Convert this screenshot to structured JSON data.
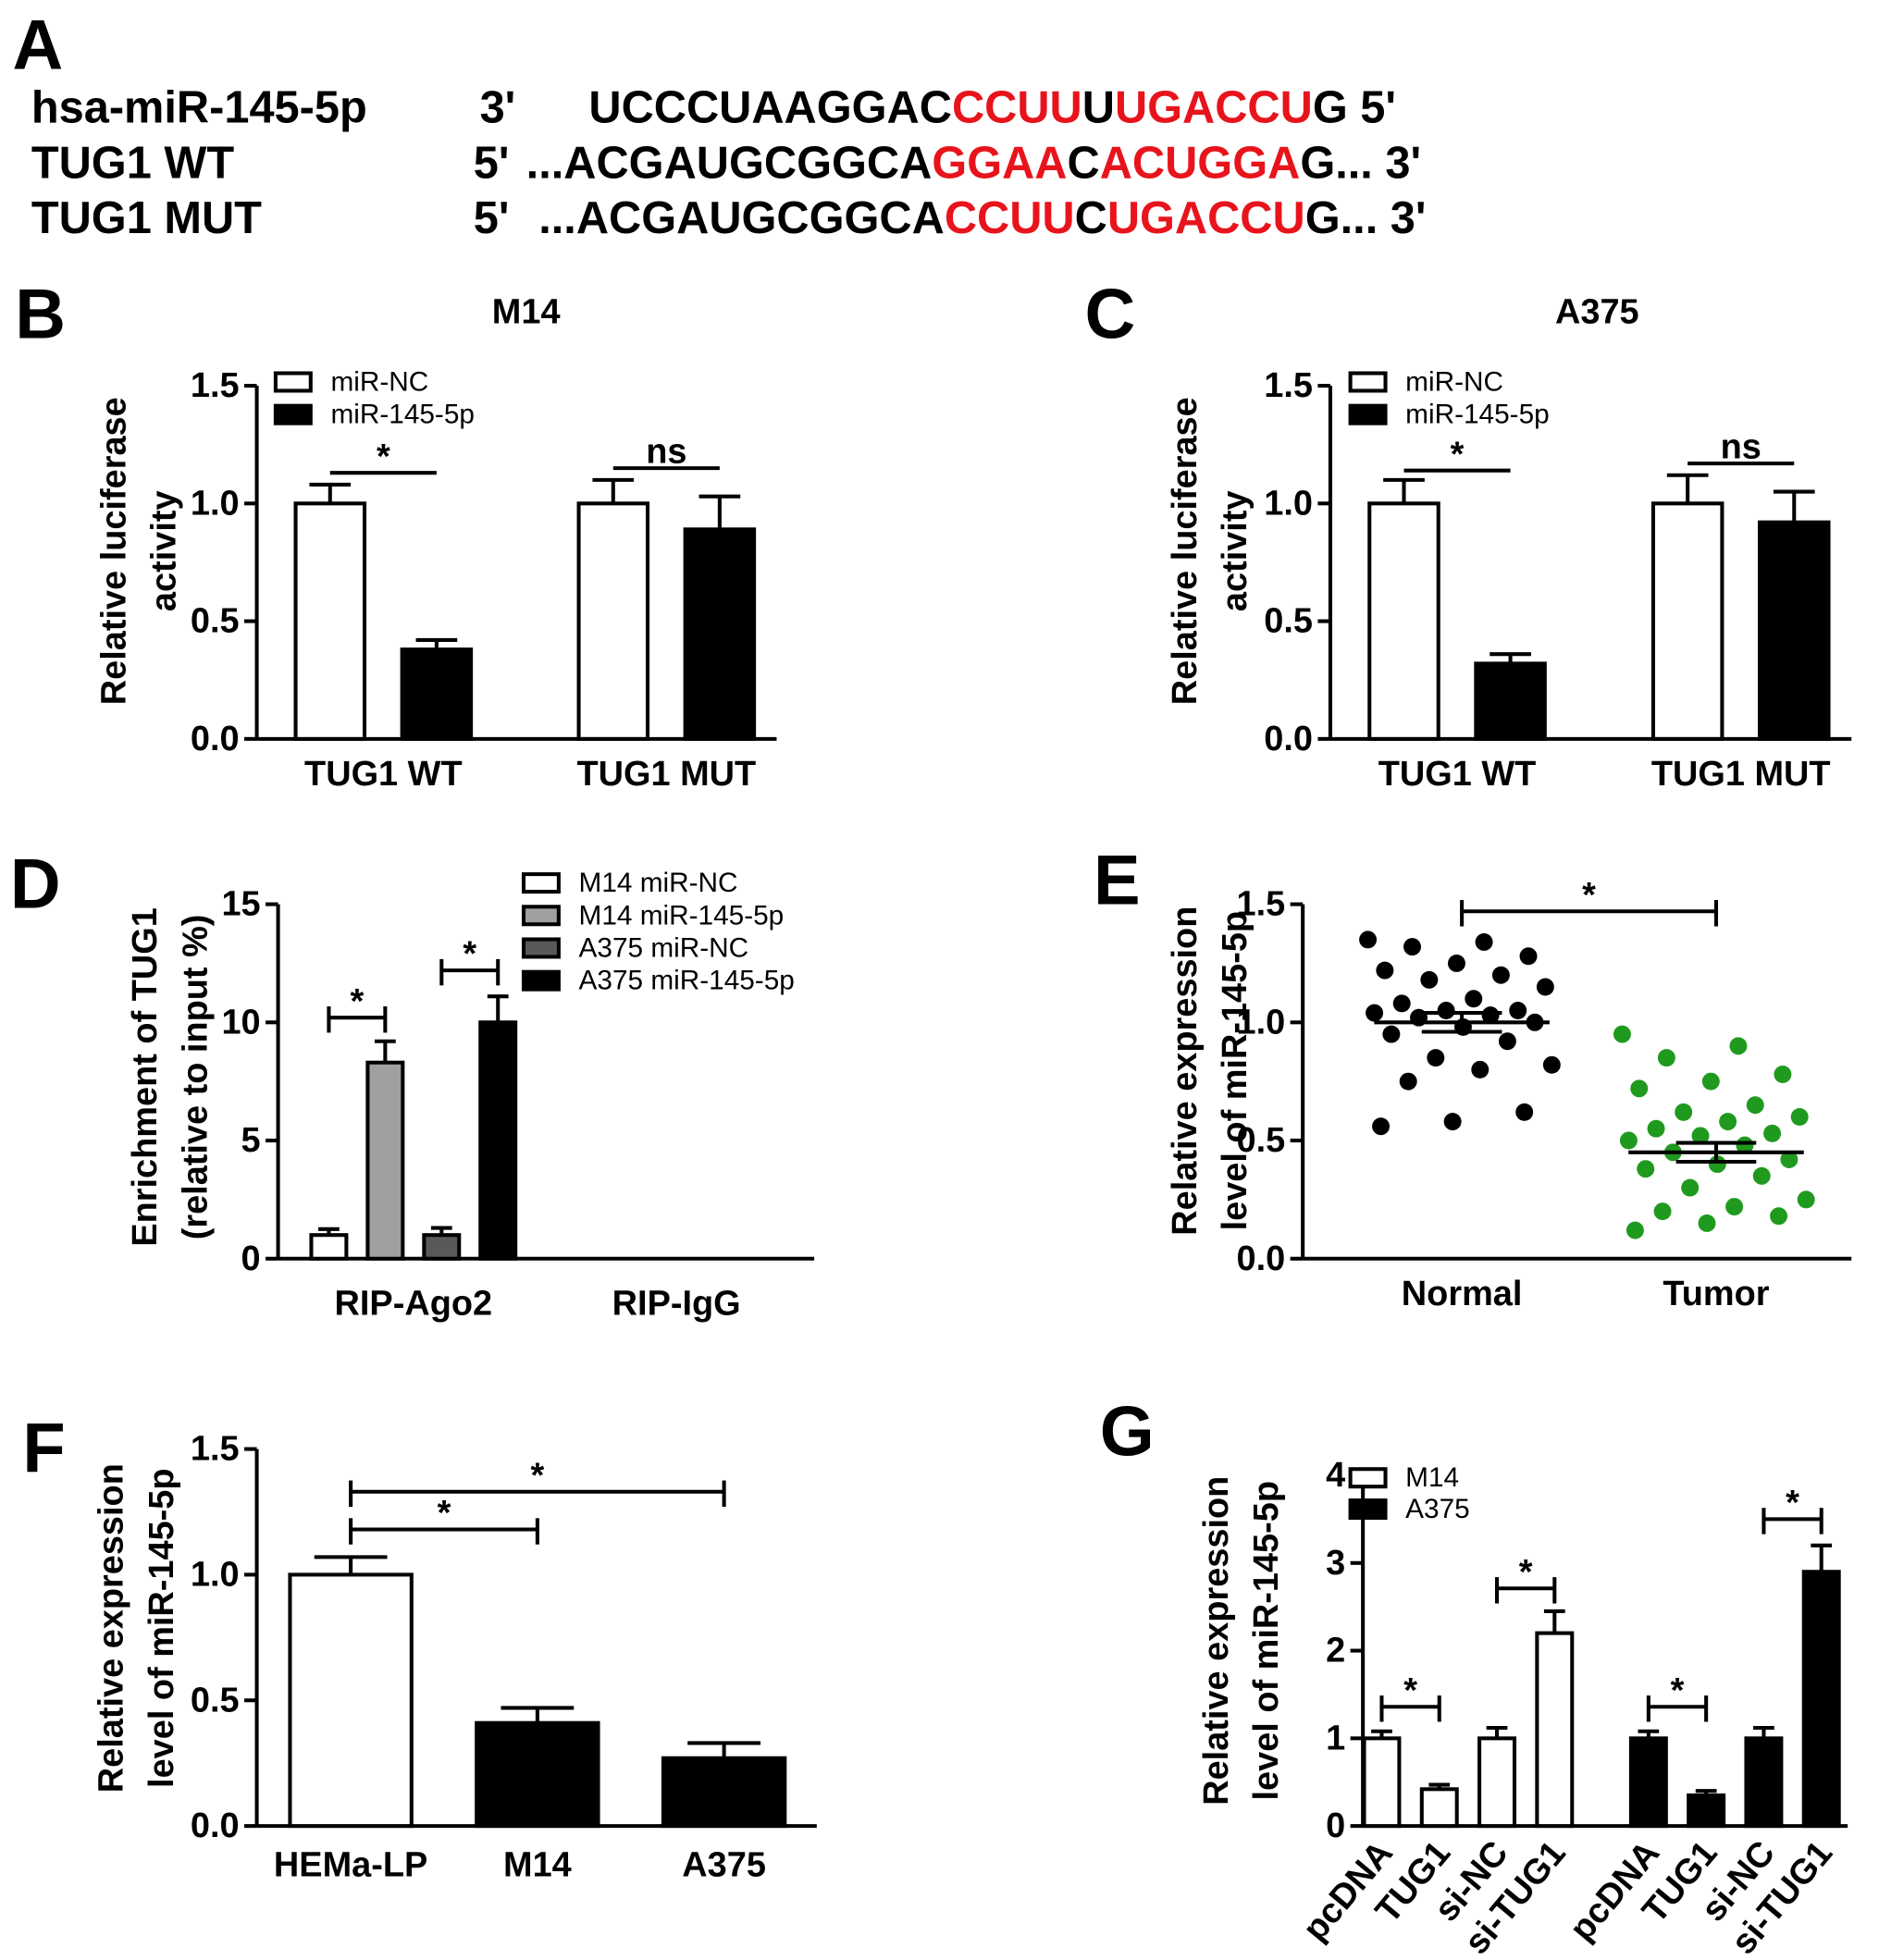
{
  "sequence_panel": {
    "panel": "A",
    "rows": [
      {
        "name": "hsa-miR-145-5p",
        "end": "3'",
        "segments": [
          {
            "text": "UCCCUAAGGAC",
            "color": "#000000"
          },
          {
            "text": "CCUU",
            "color": "#e8141c"
          },
          {
            "text": "U",
            "color": "#000000"
          },
          {
            "text": "UGACCU",
            "color": "#e8141c"
          },
          {
            "text": "G 5'",
            "color": "#000000"
          }
        ]
      },
      {
        "name": "TUG1 WT",
        "end": "5'",
        "segments": [
          {
            "text": "...ACGAUGCGGCA",
            "color": "#000000"
          },
          {
            "text": "GGAA",
            "color": "#e8141c"
          },
          {
            "text": "C",
            "color": "#000000"
          },
          {
            "text": "ACUGGA",
            "color": "#e8141c"
          },
          {
            "text": "G... 3'",
            "color": "#000000"
          }
        ]
      },
      {
        "name": "TUG1 MUT",
        "end": "5'",
        "segments": [
          {
            "text": "...ACGAUGCGGCA",
            "color": "#000000"
          },
          {
            "text": "CCUU",
            "color": "#e8141c"
          },
          {
            "text": "C",
            "color": "#000000"
          },
          {
            "text": "UGACCU",
            "color": "#e8141c"
          },
          {
            "text": "G... 3'",
            "color": "#000000"
          }
        ]
      }
    ]
  },
  "chart_data": [
    {
      "panel": "B",
      "type": "bar",
      "title": "M14",
      "ylabel": [
        "Relative  luciferase",
        "activity"
      ],
      "categories": [
        "TUG1 WT",
        "TUG1 MUT"
      ],
      "series": [
        {
          "name": "miR-NC",
          "color": "#ffffff",
          "values": [
            1.0,
            1.0
          ],
          "errors": [
            0.08,
            0.1
          ]
        },
        {
          "name": "miR-145-5p",
          "color": "#000000",
          "values": [
            0.38,
            0.89
          ],
          "errors": [
            0.04,
            0.14
          ]
        }
      ],
      "ylim": [
        0,
        1.5
      ],
      "yticks": [
        {
          "value": 0,
          "label": "0.0"
        },
        {
          "value": 0.5,
          "label": "0.5"
        },
        {
          "value": 1,
          "label": "1.0"
        },
        {
          "value": 1.5,
          "label": "1.5"
        }
      ],
      "legend": "upper left",
      "annotations": [
        {
          "label": "*",
          "from": [
            0,
            0
          ],
          "to": [
            0,
            1
          ],
          "y": 1.13
        },
        {
          "label": "ns",
          "from": [
            1,
            0
          ],
          "to": [
            1,
            1
          ],
          "y": 1.15
        }
      ]
    },
    {
      "panel": "C",
      "type": "bar",
      "title": "A375",
      "ylabel": [
        "Relative  luciferase",
        "activity"
      ],
      "categories": [
        "TUG1 WT",
        "TUG1 MUT"
      ],
      "series": [
        {
          "name": "miR-NC",
          "color": "#ffffff",
          "values": [
            1.0,
            1.0
          ],
          "errors": [
            0.1,
            0.12
          ]
        },
        {
          "name": "miR-145-5p",
          "color": "#000000",
          "values": [
            0.32,
            0.92
          ],
          "errors": [
            0.04,
            0.13
          ]
        }
      ],
      "ylim": [
        0,
        1.5
      ],
      "yticks": [
        {
          "value": 0,
          "label": "0.0"
        },
        {
          "value": 0.5,
          "label": "0.5"
        },
        {
          "value": 1,
          "label": "1.0"
        },
        {
          "value": 1.5,
          "label": "1.5"
        }
      ],
      "legend": "upper left",
      "annotations": [
        {
          "label": "*",
          "from": [
            0,
            0
          ],
          "to": [
            0,
            1
          ],
          "y": 1.14
        },
        {
          "label": "ns",
          "from": [
            1,
            0
          ],
          "to": [
            1,
            1
          ],
          "y": 1.17
        }
      ]
    },
    {
      "panel": "D",
      "type": "bar",
      "ylabel": [
        "Enrichment of TUG1",
        "(relative to input %)"
      ],
      "categories": [
        "RIP-Ago2",
        "RIP-IgG"
      ],
      "series": [
        {
          "name": "M14 miR-NC",
          "color": "#ffffff",
          "values": [
            1.0,
            null
          ],
          "errors": [
            0.25,
            null
          ]
        },
        {
          "name": "M14 miR-145-5p",
          "color": "#a0a0a0",
          "values": [
            8.3,
            null
          ],
          "errors": [
            0.9,
            null
          ]
        },
        {
          "name": "A375 miR-NC",
          "color": "#595959",
          "values": [
            1.0,
            null
          ],
          "errors": [
            0.3,
            null
          ]
        },
        {
          "name": "A375 miR-145-5p",
          "color": "#000000",
          "values": [
            10.0,
            null
          ],
          "errors": [
            1.1,
            null
          ]
        }
      ],
      "ylim": [
        0,
        15
      ],
      "yticks": [
        0,
        5,
        10,
        15
      ],
      "legend": "upper right",
      "annotations": [
        {
          "label": "*",
          "from": [
            0,
            0
          ],
          "to": [
            0,
            1
          ],
          "y": 10.2
        },
        {
          "label": "*",
          "from": [
            0,
            2
          ],
          "to": [
            0,
            3
          ],
          "y": 12.2
        }
      ]
    },
    {
      "panel": "E",
      "type": "scatter",
      "ylabel": [
        "Relative expression",
        "level of miR-145-5p"
      ],
      "categories": [
        "Normal",
        "Tumor"
      ],
      "series": [
        {
          "color": "#000000",
          "values": [
            1.35,
            1.34,
            1.32,
            1.28,
            1.25,
            1.22,
            1.2,
            1.18,
            1.15,
            1.1,
            1.08,
            1.05,
            1.05,
            1.04,
            1.03,
            1.02,
            1.0,
            0.98,
            0.95,
            0.92,
            0.85,
            0.82,
            0.8,
            0.75,
            0.62,
            0.58,
            0.56
          ],
          "mean": 1.0,
          "sem": 0.04
        },
        {
          "color": "#1f9a1f",
          "values": [
            0.95,
            0.9,
            0.85,
            0.78,
            0.75,
            0.72,
            0.65,
            0.62,
            0.6,
            0.58,
            0.55,
            0.53,
            0.52,
            0.5,
            0.48,
            0.45,
            0.42,
            0.4,
            0.38,
            0.35,
            0.3,
            0.25,
            0.22,
            0.2,
            0.18,
            0.15,
            0.12
          ],
          "mean": 0.45,
          "sem": 0.04
        }
      ],
      "ylim": [
        0,
        1.5
      ],
      "yticks": [
        {
          "value": 0,
          "label": "0.0"
        },
        {
          "value": 0.5,
          "label": "0.5"
        },
        {
          "value": 1,
          "label": "1.0"
        },
        {
          "value": 1.5,
          "label": "1.5"
        }
      ],
      "annotations": [
        {
          "label": "*",
          "from": [
            0,
            0
          ],
          "to": [
            1,
            0
          ],
          "y": 1.47
        }
      ]
    },
    {
      "panel": "F",
      "type": "bar",
      "ylabel": [
        "Relative expression",
        "level of miR-145-5p"
      ],
      "categories": [
        "HEMa-LP",
        "M14",
        "A375"
      ],
      "series": [
        {
          "colors": [
            "#ffffff",
            "#000000",
            "#000000"
          ],
          "values": [
            1.0,
            0.41,
            0.27
          ],
          "errors": [
            0.07,
            0.06,
            0.06
          ]
        }
      ],
      "ylim": [
        0,
        1.5
      ],
      "yticks": [
        {
          "value": 0,
          "label": "0.0"
        },
        {
          "value": 0.5,
          "label": "0.5"
        },
        {
          "value": 1,
          "label": "1.0"
        },
        {
          "value": 1.5,
          "label": "1.5"
        }
      ],
      "annotations": [
        {
          "label": "*",
          "from": [
            0,
            0
          ],
          "to": [
            1,
            0
          ],
          "y": 1.18
        },
        {
          "label": "*",
          "from": [
            0,
            0
          ],
          "to": [
            2,
            0
          ],
          "y": 1.33
        }
      ]
    },
    {
      "panel": "G",
      "type": "bar",
      "ylabel": [
        "Relative expression",
        "level of miR-145-5p"
      ],
      "categories": [
        "pcDNA",
        "TUG1",
        "si-NC",
        "si-TUG1"
      ],
      "series": [
        {
          "name": "M14",
          "color": "#ffffff",
          "values": [
            1.0,
            0.42,
            1.0,
            2.2
          ],
          "errors": [
            0.08,
            0.05,
            0.12,
            0.25
          ]
        },
        {
          "name": "A375",
          "color": "#000000",
          "values": [
            1.0,
            0.35,
            1.0,
            2.9
          ],
          "errors": [
            0.08,
            0.05,
            0.12,
            0.3
          ]
        }
      ],
      "ylim": [
        0,
        4
      ],
      "yticks": [
        0,
        1,
        2,
        3,
        4
      ],
      "legend": "upper left",
      "annotations": [
        {
          "label": "*",
          "from": [
            0,
            0
          ],
          "to": [
            1,
            0
          ],
          "y": 1.36
        },
        {
          "label": "*",
          "from": [
            2,
            0
          ],
          "to": [
            3,
            0
          ],
          "y": 2.71
        },
        {
          "label": "*",
          "from": [
            0,
            1
          ],
          "to": [
            1,
            1
          ],
          "y": 1.36
        },
        {
          "label": "*",
          "from": [
            2,
            1
          ],
          "to": [
            3,
            1
          ],
          "y": 3.5
        }
      ]
    }
  ]
}
